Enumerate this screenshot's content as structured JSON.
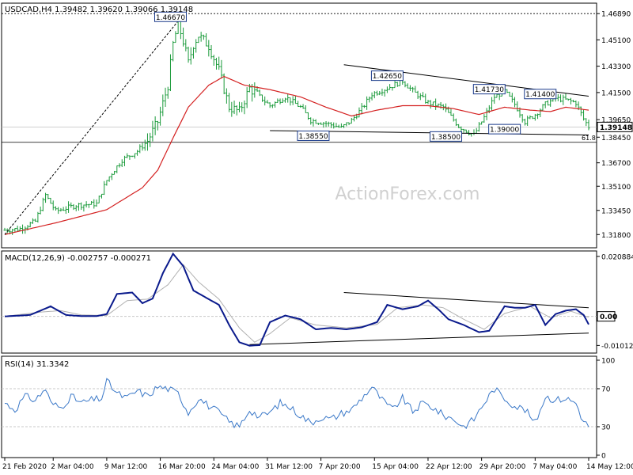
{
  "chart_data": {
    "type": "candlestick",
    "symbol_title": "USDCAD,H4  1.39482 1.39620 1.39066 1.39148",
    "current_price": 1.39148,
    "current_price_label": "1.39148",
    "watermark": "ActionForex.com",
    "colors": {
      "bars": "#1a9a3a",
      "ma": "#d42020",
      "macd": "#0a1a8c",
      "signal": "#b0b0b0",
      "rsi": "#3a78c8",
      "grid": "#c8c8c8",
      "axis": "#000000",
      "label_border": "#1a3a8a"
    },
    "price_axis": {
      "ylim": [
        1.3095,
        1.4755
      ],
      "ticks": [
        {
          "value": 1.4689,
          "label": "1.46890"
        },
        {
          "value": 1.451,
          "label": "1.45100"
        },
        {
          "value": 1.433,
          "label": "1.43300"
        },
        {
          "value": 1.415,
          "label": "1.41500"
        },
        {
          "value": 1.3965,
          "label": "1.39650"
        },
        {
          "value": 1.3845,
          "label": "1.38450"
        },
        {
          "value": 1.367,
          "label": "1.36700"
        },
        {
          "value": 1.351,
          "label": "1.35100"
        },
        {
          "value": 1.3345,
          "label": "1.33450"
        },
        {
          "value": 1.318,
          "label": "1.31800"
        }
      ]
    },
    "x_axis": {
      "count": 230,
      "ticks": [
        {
          "i": 0,
          "label": "21 Feb 2020"
        },
        {
          "i": 19,
          "label": "2 Mar 04:00"
        },
        {
          "i": 40,
          "label": "9 Mar 12:00"
        },
        {
          "i": 61,
          "label": "16 Mar 20:00"
        },
        {
          "i": 82,
          "label": "24 Mar 04:00"
        },
        {
          "i": 103,
          "label": "31 Mar 12:00"
        },
        {
          "i": 124,
          "label": "7 Apr 20:00"
        },
        {
          "i": 145,
          "label": "15 Apr 04:00"
        },
        {
          "i": 166,
          "label": "22 Apr 12:00"
        },
        {
          "i": 187,
          "label": "29 Apr 20:00"
        },
        {
          "i": 208,
          "label": "7 May 04:00"
        },
        {
          "i": 229,
          "label": "14 May 12:00"
        }
      ]
    },
    "price_anchors": [
      [
        0,
        1.321
      ],
      [
        6,
        1.322
      ],
      [
        12,
        1.327
      ],
      [
        16,
        1.345
      ],
      [
        20,
        1.334
      ],
      [
        28,
        1.338
      ],
      [
        36,
        1.339
      ],
      [
        40,
        1.355
      ],
      [
        42,
        1.36
      ],
      [
        46,
        1.369
      ],
      [
        52,
        1.375
      ],
      [
        56,
        1.382
      ],
      [
        60,
        1.395
      ],
      [
        64,
        1.42
      ],
      [
        66,
        1.448
      ],
      [
        68,
        1.462
      ],
      [
        70,
        1.45
      ],
      [
        72,
        1.435
      ],
      [
        74,
        1.448
      ],
      [
        76,
        1.454
      ],
      [
        80,
        1.447
      ],
      [
        84,
        1.43
      ],
      [
        88,
        1.405
      ],
      [
        92,
        1.402
      ],
      [
        96,
        1.418
      ],
      [
        100,
        1.412
      ],
      [
        104,
        1.406
      ],
      [
        110,
        1.412
      ],
      [
        116,
        1.405
      ],
      [
        120,
        1.396
      ],
      [
        126,
        1.394
      ],
      [
        132,
        1.391
      ],
      [
        136,
        1.396
      ],
      [
        140,
        1.404
      ],
      [
        144,
        1.414
      ],
      [
        150,
        1.418
      ],
      [
        156,
        1.423
      ],
      [
        160,
        1.416
      ],
      [
        166,
        1.408
      ],
      [
        172,
        1.405
      ],
      [
        178,
        1.392
      ],
      [
        184,
        1.386
      ],
      [
        188,
        1.398
      ],
      [
        192,
        1.412
      ],
      [
        196,
        1.416
      ],
      [
        200,
        1.407
      ],
      [
        204,
        1.395
      ],
      [
        208,
        1.4
      ],
      [
        212,
        1.407
      ],
      [
        216,
        1.411
      ],
      [
        220,
        1.41
      ],
      [
        224,
        1.408
      ],
      [
        227,
        1.397
      ],
      [
        229,
        1.3915
      ]
    ],
    "ma_anchors": [
      [
        0,
        1.318
      ],
      [
        20,
        1.326
      ],
      [
        40,
        1.335
      ],
      [
        54,
        1.35
      ],
      [
        60,
        1.362
      ],
      [
        66,
        1.384
      ],
      [
        72,
        1.405
      ],
      [
        80,
        1.42
      ],
      [
        86,
        1.426
      ],
      [
        94,
        1.42
      ],
      [
        104,
        1.417
      ],
      [
        116,
        1.412
      ],
      [
        126,
        1.405
      ],
      [
        136,
        1.399
      ],
      [
        146,
        1.403
      ],
      [
        156,
        1.406
      ],
      [
        166,
        1.406
      ],
      [
        176,
        1.404
      ],
      [
        186,
        1.4
      ],
      [
        196,
        1.405
      ],
      [
        206,
        1.403
      ],
      [
        214,
        1.402
      ],
      [
        220,
        1.405
      ],
      [
        229,
        1.403
      ]
    ],
    "labels": [
      {
        "i": 65,
        "value": 1.4667,
        "text": "1.46670"
      },
      {
        "i": 150,
        "value": 1.4265,
        "text": "1.42650"
      },
      {
        "i": 121,
        "value": 1.3855,
        "text": "1.38550"
      },
      {
        "i": 173,
        "value": 1.385,
        "text": "1.38500"
      },
      {
        "i": 190,
        "value": 1.4173,
        "text": "1.41730"
      },
      {
        "i": 210,
        "value": 1.414,
        "text": "1.41400"
      },
      {
        "i": 196,
        "value": 1.39,
        "text": "1.39000"
      }
    ],
    "trendlines": [
      {
        "from": [
          0,
          1.318
        ],
        "to": [
          69,
          1.466
        ],
        "style": "dash"
      },
      {
        "from": [
          133,
          1.434
        ],
        "to": [
          229,
          1.4125
        ],
        "style": "solid"
      },
      {
        "from": [
          104,
          1.389
        ],
        "to": [
          229,
          1.386
        ],
        "style": "solid"
      }
    ],
    "fib_line": {
      "value": 1.381,
      "label": "61.8"
    },
    "high_line": {
      "value": 1.4689
    },
    "macd": {
      "title": "MACD(12,26,9) -0.002757 -0.000271",
      "ylim": [
        -0.0125,
        0.0225
      ],
      "ticks": [
        {
          "value": 0.020884,
          "label": "0.020884"
        },
        {
          "value": 0.0,
          "label": "0.00"
        },
        {
          "value": -0.010121,
          "label": "-0.010121"
        }
      ],
      "zero_label": "0.00",
      "macd_anchors": [
        [
          0,
          0.0
        ],
        [
          10,
          0.0005
        ],
        [
          18,
          0.0035
        ],
        [
          24,
          0.0005
        ],
        [
          30,
          0.0001
        ],
        [
          36,
          0.0001
        ],
        [
          40,
          0.0008
        ],
        [
          44,
          0.0078
        ],
        [
          50,
          0.0083
        ],
        [
          54,
          0.0046
        ],
        [
          58,
          0.0062
        ],
        [
          62,
          0.015
        ],
        [
          66,
          0.0218
        ],
        [
          70,
          0.0175
        ],
        [
          74,
          0.009
        ],
        [
          78,
          0.007
        ],
        [
          84,
          0.004
        ],
        [
          88,
          -0.003
        ],
        [
          92,
          -0.009
        ],
        [
          96,
          -0.0102
        ],
        [
          100,
          -0.01
        ],
        [
          104,
          -0.002
        ],
        [
          110,
          0.0003
        ],
        [
          116,
          -0.001
        ],
        [
          122,
          -0.0045
        ],
        [
          128,
          -0.004
        ],
        [
          134,
          -0.0045
        ],
        [
          140,
          -0.0038
        ],
        [
          146,
          -0.002
        ],
        [
          150,
          0.004
        ],
        [
          156,
          0.0025
        ],
        [
          162,
          0.0035
        ],
        [
          166,
          0.0055
        ],
        [
          170,
          0.0025
        ],
        [
          174,
          -0.001
        ],
        [
          180,
          -0.003
        ],
        [
          186,
          -0.0055
        ],
        [
          190,
          -0.005
        ],
        [
          196,
          0.0035
        ],
        [
          200,
          0.003
        ],
        [
          204,
          0.003
        ],
        [
          208,
          0.004
        ],
        [
          212,
          -0.003
        ],
        [
          216,
          0.0008
        ],
        [
          220,
          0.002
        ],
        [
          224,
          0.0025
        ],
        [
          227,
          0.0005
        ],
        [
          229,
          -0.0028
        ]
      ],
      "signal_anchors": [
        [
          0,
          0.0
        ],
        [
          14,
          0.0015
        ],
        [
          22,
          0.002
        ],
        [
          30,
          0.0005
        ],
        [
          40,
          0.0003
        ],
        [
          48,
          0.0055
        ],
        [
          56,
          0.006
        ],
        [
          64,
          0.011
        ],
        [
          70,
          0.018
        ],
        [
          76,
          0.012
        ],
        [
          84,
          0.006
        ],
        [
          92,
          -0.004
        ],
        [
          98,
          -0.009
        ],
        [
          104,
          -0.006
        ],
        [
          112,
          -0.0005
        ],
        [
          122,
          -0.003
        ],
        [
          134,
          -0.004
        ],
        [
          146,
          -0.0028
        ],
        [
          154,
          0.003
        ],
        [
          164,
          0.004
        ],
        [
          172,
          0.003
        ],
        [
          180,
          -0.001
        ],
        [
          188,
          -0.0045
        ],
        [
          196,
          0.001
        ],
        [
          206,
          0.0035
        ],
        [
          214,
          -0.0005
        ],
        [
          222,
          0.0018
        ],
        [
          229,
          -0.0003
        ]
      ],
      "trendlines": [
        {
          "from": [
            96,
            -0.0098
          ],
          "to": [
            229,
            -0.0058
          ]
        },
        {
          "from": [
            133,
            0.0083
          ],
          "to": [
            229,
            0.003
          ]
        }
      ]
    },
    "rsi": {
      "title": "RSI(14) 31.3342",
      "ylim": [
        0,
        100
      ],
      "ticks": [
        {
          "value": 100,
          "label": "100"
        },
        {
          "value": 70,
          "label": "70"
        },
        {
          "value": 30,
          "label": "30"
        },
        {
          "value": 0,
          "label": "0"
        }
      ],
      "levels": [
        70,
        30
      ],
      "anchors": [
        [
          0,
          55
        ],
        [
          4,
          48
        ],
        [
          8,
          62
        ],
        [
          12,
          58
        ],
        [
          16,
          70
        ],
        [
          18,
          55
        ],
        [
          22,
          50
        ],
        [
          26,
          62
        ],
        [
          30,
          55
        ],
        [
          34,
          58
        ],
        [
          38,
          60
        ],
        [
          40,
          78
        ],
        [
          44,
          65
        ],
        [
          48,
          60
        ],
        [
          52,
          68
        ],
        [
          56,
          62
        ],
        [
          60,
          72
        ],
        [
          64,
          70
        ],
        [
          68,
          65
        ],
        [
          70,
          55
        ],
        [
          72,
          45
        ],
        [
          76,
          60
        ],
        [
          80,
          52
        ],
        [
          84,
          45
        ],
        [
          88,
          35
        ],
        [
          92,
          30
        ],
        [
          96,
          48
        ],
        [
          100,
          40
        ],
        [
          104,
          45
        ],
        [
          108,
          55
        ],
        [
          112,
          50
        ],
        [
          116,
          42
        ],
        [
          120,
          34
        ],
        [
          124,
          40
        ],
        [
          128,
          38
        ],
        [
          132,
          44
        ],
        [
          136,
          48
        ],
        [
          140,
          60
        ],
        [
          144,
          72
        ],
        [
          148,
          58
        ],
        [
          152,
          48
        ],
        [
          156,
          60
        ],
        [
          160,
          46
        ],
        [
          164,
          55
        ],
        [
          168,
          50
        ],
        [
          172,
          42
        ],
        [
          176,
          38
        ],
        [
          180,
          30
        ],
        [
          184,
          38
        ],
        [
          188,
          55
        ],
        [
          192,
          70
        ],
        [
          196,
          60
        ],
        [
          200,
          52
        ],
        [
          204,
          48
        ],
        [
          208,
          34
        ],
        [
          212,
          62
        ],
        [
          216,
          58
        ],
        [
          220,
          60
        ],
        [
          224,
          55
        ],
        [
          227,
          35
        ],
        [
          229,
          31
        ]
      ]
    }
  }
}
